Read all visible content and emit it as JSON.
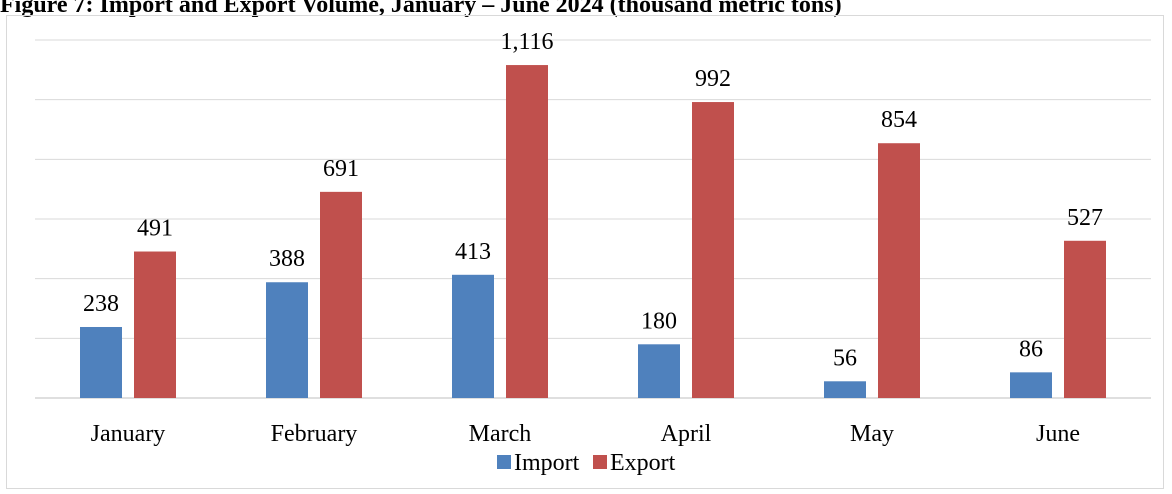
{
  "chart_data": {
    "type": "bar",
    "title": "Figure 7: Import and Export Volume, January – June 2024",
    "unit_note": "(thousand metric tons)",
    "categories": [
      "January",
      "February",
      "March",
      "April",
      "May",
      "June"
    ],
    "series": [
      {
        "name": "Import",
        "color": "#4f81bd",
        "values": [
          238,
          388,
          413,
          180,
          56,
          86
        ]
      },
      {
        "name": "Export",
        "color": "#c0504d",
        "values": [
          491,
          691,
          1116,
          992,
          854,
          527
        ]
      }
    ],
    "data_labels": {
      "Import": [
        "238",
        "388",
        "413",
        "180",
        "56",
        "86"
      ],
      "Export": [
        "491",
        "691",
        "1,116",
        "992",
        "854",
        "527"
      ]
    },
    "ylim": [
      0,
      1200
    ],
    "gridlines": true,
    "y_tick_labels_shown": false,
    "legend_position": "bottom"
  }
}
